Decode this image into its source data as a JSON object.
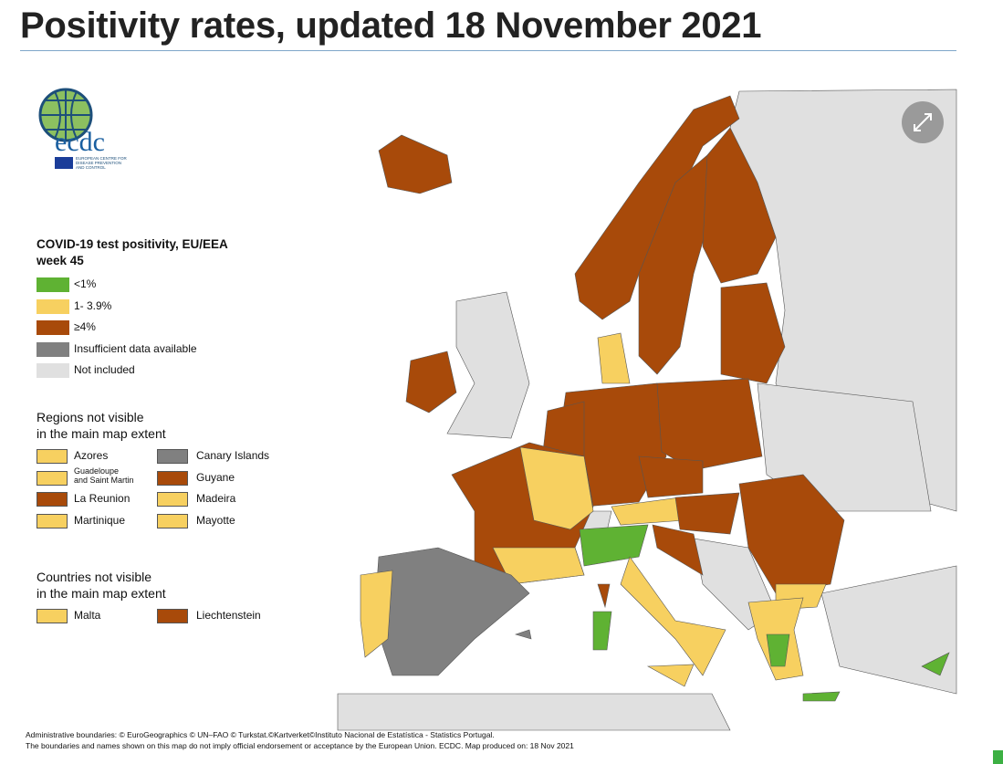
{
  "header": {
    "title": "Positivity rates, updated 18 November 2021"
  },
  "logo": {
    "name": "ecdc",
    "subtitle": [
      "EUROPEAN CENTRE FOR",
      "DISEASE PREVENTION",
      "AND CONTROL"
    ]
  },
  "legend": {
    "title": [
      "COVID-19 test positivity, EU/EEA",
      "week 45"
    ],
    "items": [
      {
        "label": "<1%",
        "color": "#5fb233"
      },
      {
        "label": "1- 3.9%",
        "color": "#f7d060"
      },
      {
        "label": "≥4%",
        "color": "#a84a0a"
      },
      {
        "label": "Insufficient data available",
        "color": "#808080"
      },
      {
        "label": "Not included",
        "color": "#e0e0e0"
      }
    ]
  },
  "regions": {
    "title": [
      "Regions not visible",
      "in the main map extent"
    ],
    "items": [
      {
        "name": [
          "Azores"
        ],
        "color": "#f7d060"
      },
      {
        "name": [
          "Canary Islands"
        ],
        "color": "#808080"
      },
      {
        "name": [
          "Guadeloupe",
          "and Saint Martin"
        ],
        "color": "#f7d060"
      },
      {
        "name": [
          "Guyane"
        ],
        "color": "#a84a0a"
      },
      {
        "name": [
          "La Reunion"
        ],
        "color": "#a84a0a"
      },
      {
        "name": [
          "Madeira"
        ],
        "color": "#f7d060"
      },
      {
        "name": [
          "Martinique"
        ],
        "color": "#f7d060"
      },
      {
        "name": [
          "Mayotte"
        ],
        "color": "#f7d060"
      }
    ]
  },
  "countries": {
    "title": [
      "Countries not visible",
      "in the main map extent"
    ],
    "items": [
      {
        "name": [
          "Malta"
        ],
        "color": "#f7d060"
      },
      {
        "name": [
          "Liechtenstein"
        ],
        "color": "#a84a0a"
      }
    ]
  },
  "footer": {
    "lines": [
      "Administrative boundaries: © EuroGeographics © UN–FAO © Turkstat.©Kartverket©Instituto Nacional de Estatística - Statistics Portugal.",
      "The boundaries and names shown on this map do not imply official endorsement or acceptance by the European Union. ECDC. Map produced on: 18 Nov 2021"
    ]
  }
}
